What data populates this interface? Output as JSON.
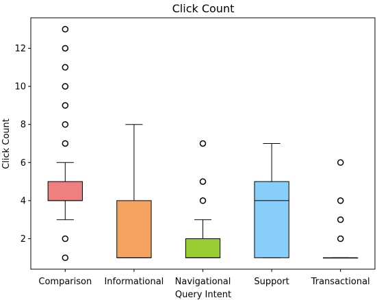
{
  "chart_data": {
    "type": "box",
    "title": "Click Count",
    "xlabel": "Query Intent",
    "ylabel": "Click Count",
    "ylim": [
      0.4,
      13.6
    ],
    "yticks": [
      2,
      4,
      6,
      8,
      10,
      12
    ],
    "grid": false,
    "categories": [
      "Comparison",
      "Informational",
      "Navigational",
      "Support",
      "Transactional"
    ],
    "boxes": [
      {
        "category": "Comparison",
        "color": "#F08080",
        "whisker_low": 3,
        "q1": 4,
        "median": 4,
        "q3": 5,
        "whisker_high": 6,
        "outliers": [
          1,
          2,
          7,
          8,
          9,
          10,
          11,
          12,
          13
        ]
      },
      {
        "category": "Informational",
        "color": "#F4A460",
        "whisker_low": 1,
        "q1": 1,
        "median": 1,
        "q3": 4,
        "whisker_high": 8,
        "outliers": []
      },
      {
        "category": "Navigational",
        "color": "#9ACD32",
        "whisker_low": 1,
        "q1": 1,
        "median": 1,
        "q3": 2,
        "whisker_high": 3,
        "outliers": [
          4,
          5,
          7
        ]
      },
      {
        "category": "Support",
        "color": "#87CEFA",
        "whisker_low": 1,
        "q1": 1,
        "median": 4,
        "q3": 5,
        "whisker_high": 7,
        "outliers": []
      },
      {
        "category": "Transactional",
        "color": "#ADD8E6",
        "whisker_low": 1,
        "q1": 1,
        "median": 1,
        "q3": 1,
        "whisker_high": 1,
        "outliers": [
          2,
          3,
          4,
          6
        ]
      }
    ]
  }
}
